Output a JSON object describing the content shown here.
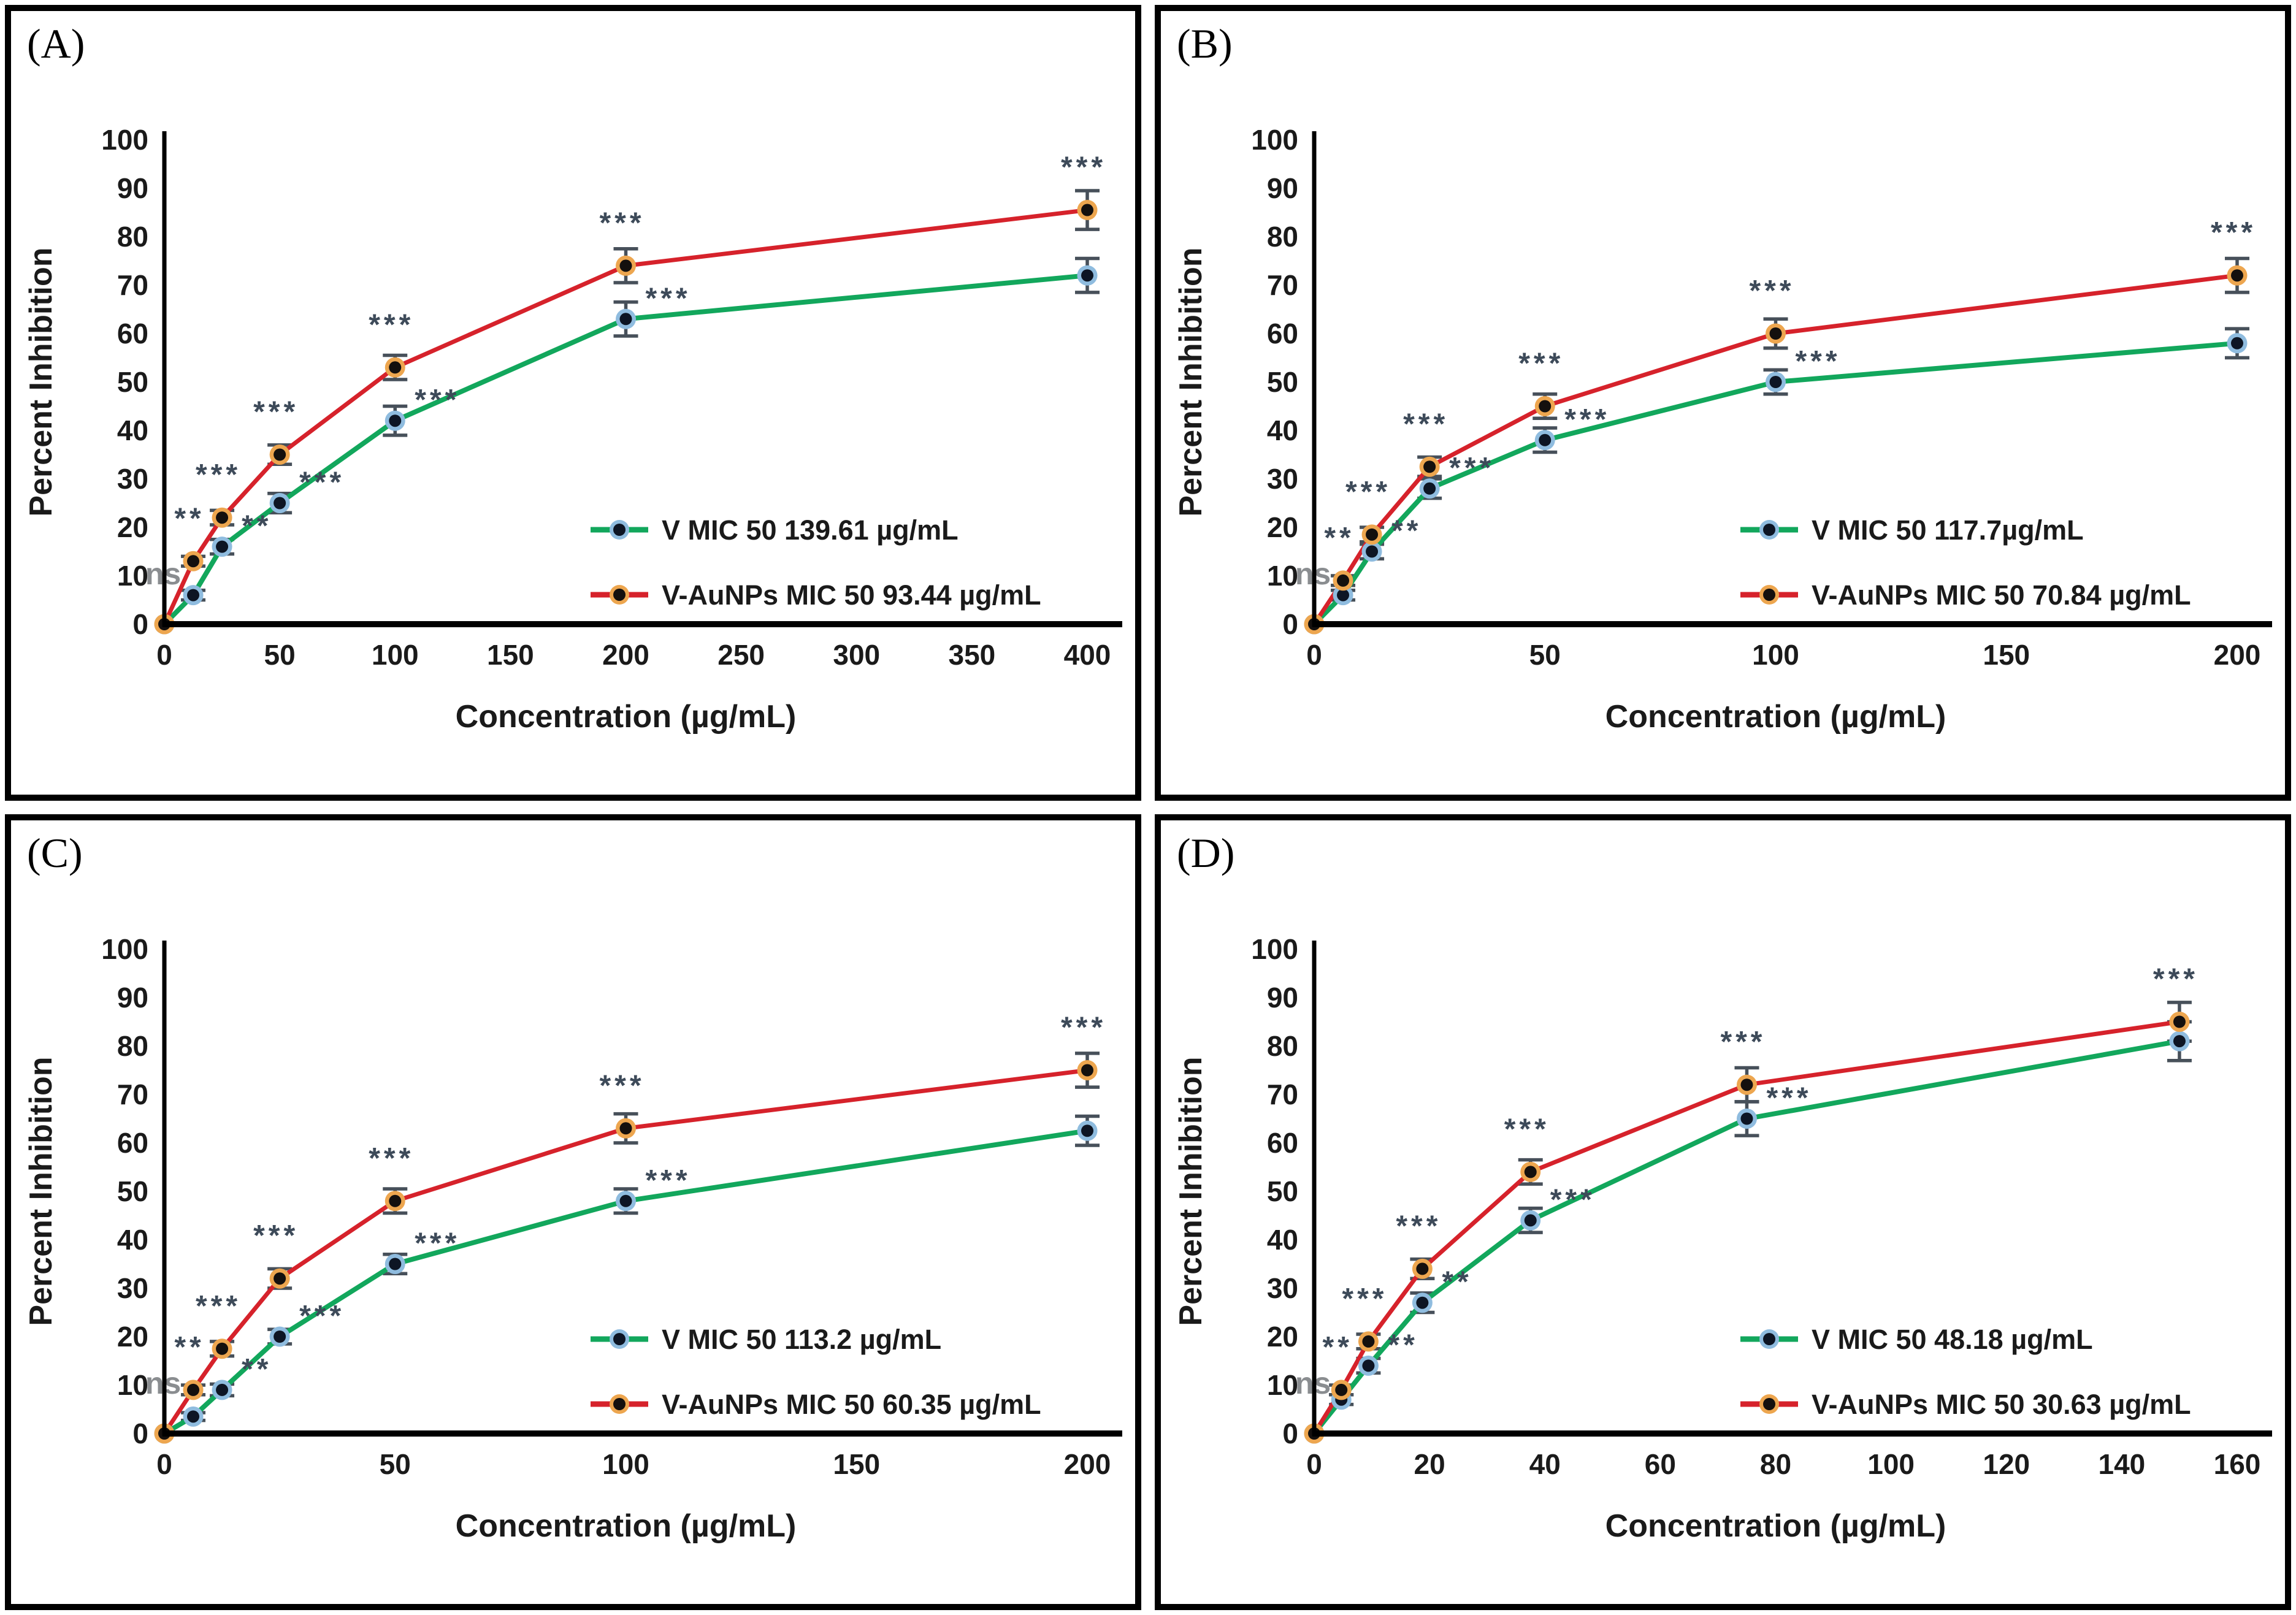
{
  "figure": {
    "description": "Four-panel dose-response figure: Percent Inhibition vs Concentration for V and V-AuNPs with MIC 50 values, error bars and significance marks",
    "colors": {
      "v_line": "#12a75c",
      "v_marker_ring": "#8fbcdf",
      "v_marker_core": "#0d1524",
      "vaunps_line": "#d6222b",
      "vaunps_marker_ring": "#eda64f",
      "vaunps_marker_core": "#14100e",
      "error_bar": "#47505a",
      "sig_text": "#3d4a59",
      "ns_text": "#8a8d90",
      "axis": "#000000",
      "text": "#1a1a1a"
    }
  },
  "chart_data": [
    {
      "panel_label": "(A)",
      "type": "line",
      "xlabel": "Concentration (µg/mL)",
      "ylabel": "Percent Inhibition",
      "ylim": [
        0,
        100
      ],
      "yticks": [
        0,
        10,
        20,
        30,
        40,
        50,
        60,
        70,
        80,
        90,
        100
      ],
      "xticks": [
        0,
        50,
        100,
        150,
        200,
        250,
        300,
        350,
        400
      ],
      "xmax": 400,
      "grid": false,
      "legend_position": "inside lower-right",
      "x": [
        0,
        12.5,
        25,
        50,
        100,
        200,
        400
      ],
      "series": [
        {
          "name": "V MIC 50 139.61 µg/mL",
          "color": "#12a75c",
          "marker_ring": "#8fbcdf",
          "marker_core": "#0d1524",
          "values": [
            0,
            6,
            16,
            25,
            42,
            63,
            72
          ],
          "errors": [
            0,
            1,
            1.5,
            2,
            3,
            3.5,
            3.5
          ],
          "sig": [
            "",
            "",
            "**",
            "***",
            "***",
            "***",
            ""
          ]
        },
        {
          "name": "V-AuNPs MIC 50 93.44 µg/mL",
          "color": "#d6222b",
          "marker_ring": "#eda64f",
          "marker_core": "#14100e",
          "values": [
            0,
            13,
            22,
            35,
            53,
            74,
            85.5
          ],
          "errors": [
            0,
            1,
            1.5,
            2,
            2.5,
            3.5,
            4
          ],
          "sig": [
            "",
            "**",
            "***",
            "***",
            "***",
            "***",
            "***"
          ]
        }
      ],
      "annotations": {
        "ns_label": "ns",
        "ns_at": {
          "x": 0,
          "y": 10
        }
      }
    },
    {
      "panel_label": "(B)",
      "type": "line",
      "xlabel": "Concentration (µg/mL)",
      "ylabel": "Percent Inhibition",
      "ylim": [
        0,
        100
      ],
      "yticks": [
        0,
        10,
        20,
        30,
        40,
        50,
        60,
        70,
        80,
        90,
        100
      ],
      "xticks": [
        0,
        50,
        100,
        150,
        200
      ],
      "xmax": 200,
      "grid": false,
      "legend_position": "inside lower-right",
      "x": [
        0,
        6.25,
        12.5,
        25,
        50,
        100,
        200
      ],
      "series": [
        {
          "name": "V MIC 50 117.7µg/mL",
          "color": "#12a75c",
          "marker_ring": "#8fbcdf",
          "marker_core": "#0d1524",
          "values": [
            0,
            6,
            15,
            28,
            38,
            50,
            58
          ],
          "errors": [
            0,
            1,
            1.5,
            2,
            2.5,
            2.5,
            3
          ],
          "sig": [
            "",
            "",
            "**",
            "***",
            "***",
            "***",
            ""
          ]
        },
        {
          "name": "V-AuNPs MIC 50 70.84 µg/mL",
          "color": "#d6222b",
          "marker_ring": "#eda64f",
          "marker_core": "#14100e",
          "values": [
            0,
            9,
            18.5,
            32.5,
            45,
            60,
            72
          ],
          "errors": [
            0,
            1,
            1.5,
            2,
            2.5,
            3,
            3.5
          ],
          "sig": [
            "",
            "**",
            "***",
            "***",
            "***",
            "***",
            "***"
          ]
        }
      ],
      "annotations": {
        "ns_label": "ns",
        "ns_at": {
          "x": 0,
          "y": 10
        }
      }
    },
    {
      "panel_label": "(C)",
      "type": "line",
      "xlabel": "Concentration (µg/mL)",
      "ylabel": "Percent Inhibition",
      "ylim": [
        0,
        100
      ],
      "yticks": [
        0,
        10,
        20,
        30,
        40,
        50,
        60,
        70,
        80,
        90,
        100
      ],
      "xticks": [
        0,
        50,
        100,
        150,
        200
      ],
      "xmax": 200,
      "grid": false,
      "legend_position": "inside lower-right",
      "x": [
        0,
        6.25,
        12.5,
        25,
        50,
        100,
        200
      ],
      "series": [
        {
          "name": "V MIC 50 113.2 µg/mL",
          "color": "#12a75c",
          "marker_ring": "#8fbcdf",
          "marker_core": "#0d1524",
          "values": [
            0,
            3.5,
            9,
            20,
            35,
            48,
            62.5
          ],
          "errors": [
            0,
            0.8,
            1.2,
            1.5,
            2,
            2.5,
            3
          ],
          "sig": [
            "",
            "",
            "**",
            "***",
            "***",
            "***",
            ""
          ]
        },
        {
          "name": "V-AuNPs MIC 50 60.35 µg/mL",
          "color": "#d6222b",
          "marker_ring": "#eda64f",
          "marker_core": "#14100e",
          "values": [
            0,
            9,
            17.5,
            32,
            48,
            63,
            75
          ],
          "errors": [
            0,
            1,
            1.5,
            2,
            2.5,
            3,
            3.5
          ],
          "sig": [
            "",
            "**",
            "***",
            "***",
            "***",
            "***",
            "***"
          ]
        }
      ],
      "annotations": {
        "ns_label": "ns",
        "ns_at": {
          "x": 0,
          "y": 10
        }
      }
    },
    {
      "panel_label": "(D)",
      "type": "line",
      "xlabel": "Concentration (µg/mL)",
      "ylabel": "Percent Inhibition",
      "ylim": [
        0,
        100
      ],
      "yticks": [
        0,
        10,
        20,
        30,
        40,
        50,
        60,
        70,
        80,
        90,
        100
      ],
      "xticks": [
        0,
        20,
        40,
        60,
        80,
        100,
        120,
        140,
        160
      ],
      "xmax": 160,
      "grid": false,
      "legend_position": "inside lower-right",
      "x": [
        0,
        4.7,
        9.4,
        18.75,
        37.5,
        75,
        150
      ],
      "series": [
        {
          "name": "V MIC 50 48.18 µg/mL",
          "color": "#12a75c",
          "marker_ring": "#8fbcdf",
          "marker_core": "#0d1524",
          "values": [
            0,
            7,
            14,
            27,
            44,
            65,
            81
          ],
          "errors": [
            0,
            1,
            1.5,
            2,
            2.5,
            3.5,
            4
          ],
          "sig": [
            "",
            "",
            "**",
            "**",
            "***",
            "***",
            ""
          ]
        },
        {
          "name": "V-AuNPs MIC 50 30.63 µg/mL",
          "color": "#d6222b",
          "marker_ring": "#eda64f",
          "marker_core": "#14100e",
          "values": [
            0,
            9,
            19,
            34,
            54,
            72,
            85
          ],
          "errors": [
            0,
            1,
            1.5,
            2,
            2.5,
            3.5,
            4
          ],
          "sig": [
            "",
            "**",
            "***",
            "***",
            "***",
            "***",
            "***"
          ]
        }
      ],
      "annotations": {
        "ns_label": "ns",
        "ns_at": {
          "x": 0,
          "y": 10
        }
      }
    }
  ]
}
